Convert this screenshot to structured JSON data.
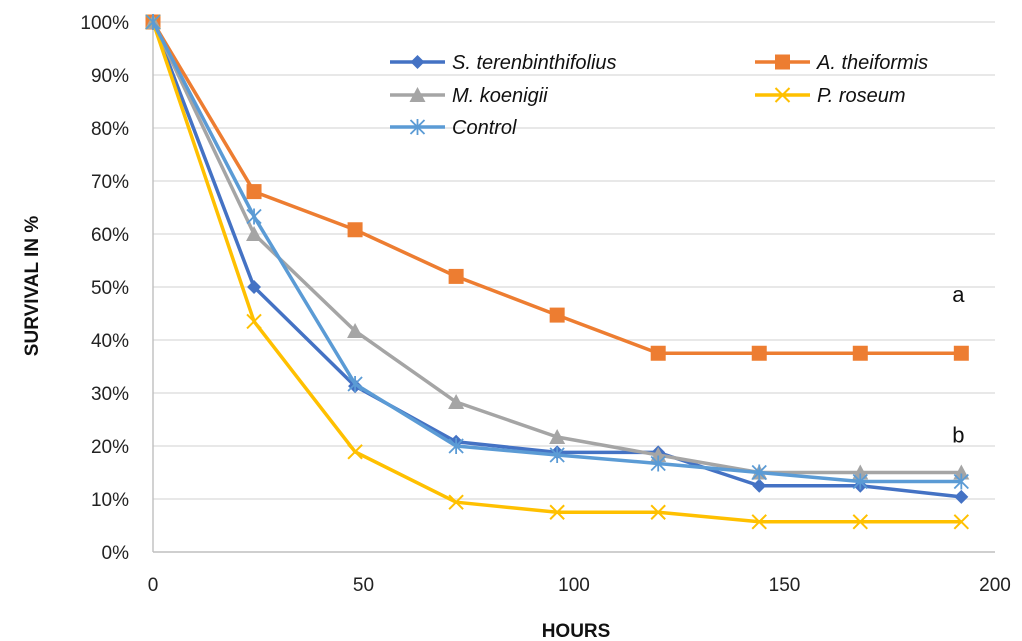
{
  "chart_data": {
    "type": "line",
    "title": "",
    "xlabel": "HOURS",
    "ylabel": "SURVIVAL  IN %",
    "xlim": [
      0,
      200
    ],
    "ylim": [
      0,
      100
    ],
    "x_ticks": [
      "0",
      "50",
      "100",
      "150",
      "200"
    ],
    "y_ticks": [
      "0%",
      "10%",
      "20%",
      "30%",
      "40%",
      "50%",
      "60%",
      "70%",
      "80%",
      "90%",
      "100%"
    ],
    "grid": "horizontal",
    "legend_position": "top-right",
    "series": [
      {
        "name": "S. terenbinthifolius",
        "color": "#4472C4",
        "marker": "diamond",
        "x": [
          0,
          24,
          48,
          72,
          96,
          120,
          144,
          168,
          192
        ],
        "y": [
          100,
          50,
          31.3,
          20.8,
          18.8,
          18.8,
          12.5,
          12.5,
          10.4
        ]
      },
      {
        "name": "A. theiformis",
        "color": "#ED7D31",
        "marker": "square",
        "x": [
          0,
          24,
          48,
          72,
          96,
          120,
          144,
          168,
          192
        ],
        "y": [
          100,
          68,
          60.8,
          52,
          44.7,
          37.5,
          37.5,
          37.5,
          37.5
        ]
      },
      {
        "name": "M. koenigii",
        "color": "#A5A5A5",
        "marker": "triangle",
        "x": [
          0,
          24,
          48,
          72,
          96,
          120,
          144,
          168,
          192
        ],
        "y": [
          100,
          60,
          41.7,
          28.3,
          21.7,
          18.3,
          15,
          15,
          15
        ]
      },
      {
        "name": "P. roseum",
        "color": "#FFC000",
        "marker": "x",
        "x": [
          0,
          24,
          48,
          72,
          96,
          120,
          144,
          168,
          192
        ],
        "y": [
          100,
          43.5,
          18.9,
          9.4,
          7.5,
          7.5,
          5.7,
          5.7,
          5.7
        ]
      },
      {
        "name": "Control",
        "color": "#5B9BD5",
        "marker": "asterisk",
        "x": [
          0,
          24,
          48,
          72,
          96,
          120,
          144,
          168,
          192
        ],
        "y": [
          100,
          63.3,
          31.7,
          20,
          18.3,
          16.7,
          15,
          13.3,
          13.3
        ]
      }
    ],
    "annotations": [
      {
        "text": "a",
        "x": 192,
        "y": 48.5
      },
      {
        "text": "b",
        "x": 192,
        "y": 22
      }
    ]
  }
}
